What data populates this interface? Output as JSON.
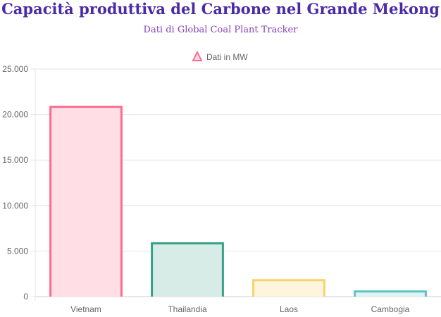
{
  "chart_data": {
    "type": "bar",
    "title": "Capacità produttiva del Carbone nel Grande Mekong",
    "subtitle": "Dati di Global Coal Plant Tracker",
    "categories": [
      "Vietnam",
      "Thailandia",
      "Laos",
      "Cambogia"
    ],
    "series": [
      {
        "name": "Dati in MW",
        "values": [
          20850,
          5850,
          1800,
          560
        ]
      }
    ],
    "bar_styles": [
      {
        "fill": "#ffdfe5",
        "stroke": "#ff6b8f"
      },
      {
        "fill": "#d7ece6",
        "stroke": "#35a086"
      },
      {
        "fill": "#fff5dd",
        "stroke": "#f7d36a"
      },
      {
        "fill": "#e1f4f4",
        "stroke": "#5bc4c4"
      }
    ],
    "ylim": [
      0,
      25000
    ],
    "yticks": [
      {
        "value": 0,
        "label": "0"
      },
      {
        "value": 5000,
        "label": "5.000"
      },
      {
        "value": 10000,
        "label": "10.000"
      },
      {
        "value": 15000,
        "label": "15.000"
      },
      {
        "value": 20000,
        "label": "20.000"
      },
      {
        "value": 25000,
        "label": "25.000"
      }
    ],
    "legend": {
      "position": "top",
      "marker": "triangle-icon",
      "color": "#ff6b8f"
    },
    "grid": true
  }
}
